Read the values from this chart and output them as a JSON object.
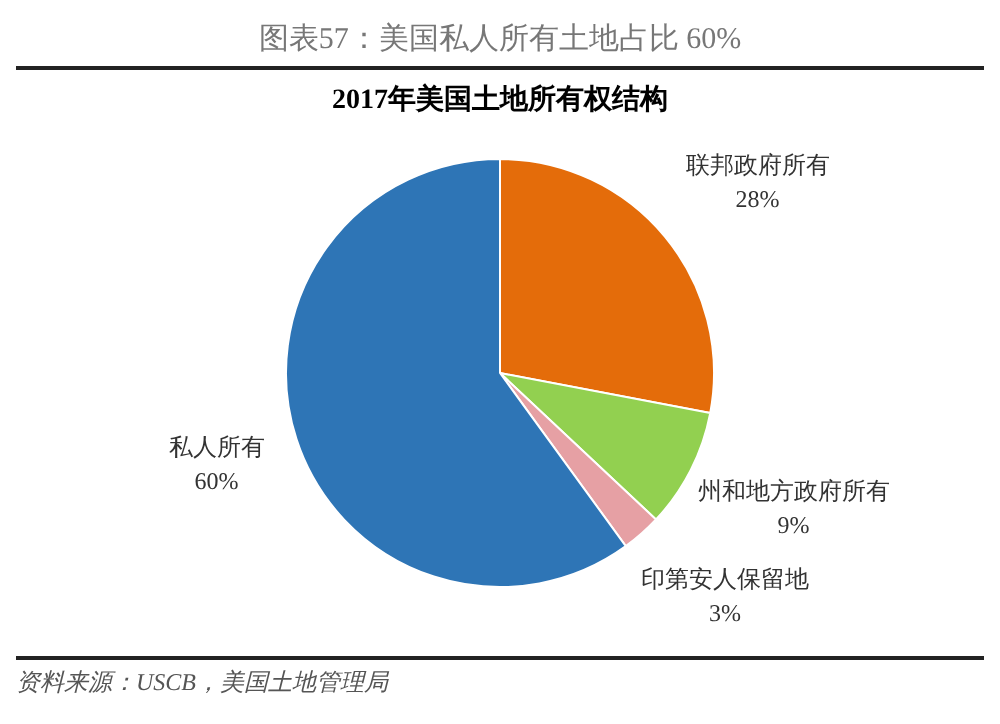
{
  "chart_data": {
    "type": "pie",
    "title": "图表57：美国私人所有土地占比 60%",
    "subtitle": "2017年美国土地所有权结构",
    "categories": [
      "联邦政府所有",
      "州和地方政府所有",
      "印第安人保留地",
      "私人所有"
    ],
    "values": [
      28,
      9,
      3,
      60
    ],
    "colors": [
      "#e46c0a",
      "#92d050",
      "#e6a0a4",
      "#2e75b6"
    ],
    "value_labels": [
      "28%",
      "9%",
      "3%",
      "60%"
    ],
    "legend": false,
    "annotations": [
      "资料来源：USCB，美国土地管理局"
    ]
  }
}
